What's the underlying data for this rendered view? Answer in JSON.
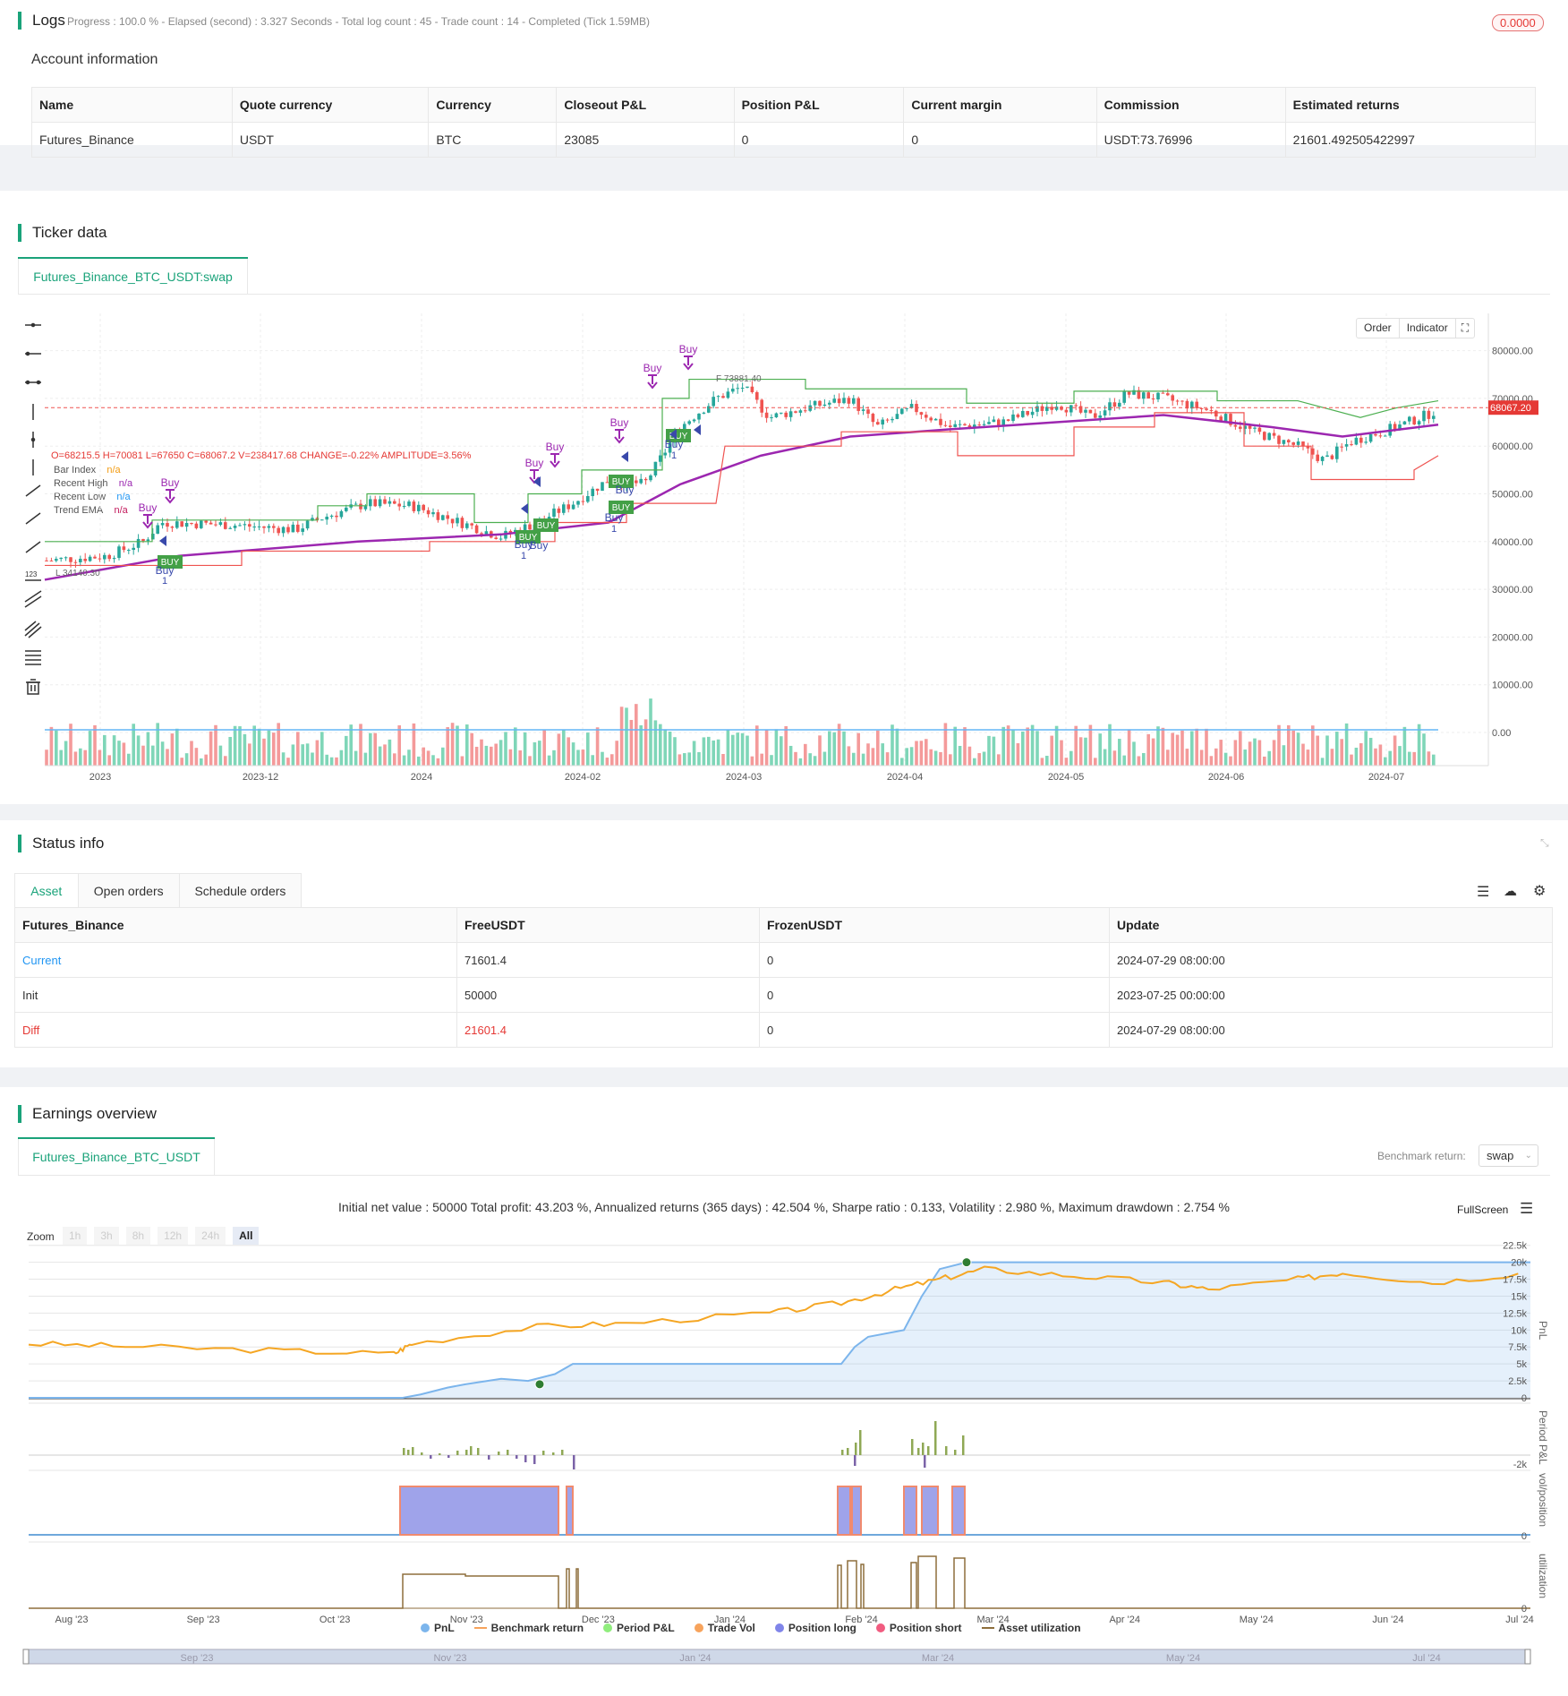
{
  "logs": {
    "title": "Logs",
    "status": "Progress : 100.0 % - Elapsed (second) : 3.327  Seconds - Total log count : 45 - Trade count : 14 - Completed (Tick 1.59MB)",
    "badge": "0.0000"
  },
  "account": {
    "title": "Account information",
    "columns": [
      "Name",
      "Quote currency",
      "Currency",
      "Closeout P&L",
      "Position P&L",
      "Current margin",
      "Commission",
      "Estimated returns"
    ],
    "row": [
      "Futures_Binance",
      "USDT",
      "BTC",
      "23085",
      "0",
      "0",
      "USDT:73.76996",
      "21601.492505422997"
    ]
  },
  "ticker": {
    "title": "Ticker data",
    "tab": "Futures_Binance_BTC_USDT:swap",
    "ohlc": "O=68215.5 H=70081 L=67650 C=68067.2 V=238417.68 CHANGE=-0.22% AMPLITUDE=3.56%",
    "legend": [
      {
        "name": "Bar Index",
        "value": "n/a",
        "color": "#f39c12"
      },
      {
        "name": "Recent High",
        "value": "n/a",
        "color": "#9b27b0"
      },
      {
        "name": "Recent Low",
        "value": "n/a",
        "color": "#2196f3"
      },
      {
        "name": "Trend EMA",
        "value": "n/a",
        "color": "#c2185b"
      }
    ],
    "buttons": [
      "Order",
      "Indicator"
    ],
    "price_label": "68067.20",
    "high_label": "73881.40",
    "low_label": "34140.30",
    "y_ticks": [
      "80000.00",
      "70000.00",
      "60000.00",
      "50000.00",
      "40000.00",
      "30000.00",
      "20000.00",
      "10000.00",
      "0.00"
    ],
    "x_ticks": [
      "2023",
      "2023-12",
      "2024",
      "2024-02",
      "2024-03",
      "2024-04",
      "2024-05",
      "2024-06",
      "2024-07"
    ],
    "signals": [
      "Buy",
      "Buy",
      "Buy",
      "Buy",
      "Buy",
      "Buy",
      "Buy",
      "Buy",
      "Buy",
      "Buy",
      "Buy",
      "Buy",
      "Buy",
      "Buy",
      "Buy",
      "Buy"
    ],
    "buy_tags": [
      "BUY",
      "BUY",
      "BUY",
      "BUY",
      "BUY",
      "BUY"
    ],
    "ones": [
      "1",
      "1",
      "1",
      "1"
    ]
  },
  "status": {
    "title": "Status info",
    "tabs": [
      "Asset",
      "Open orders",
      "Schedule orders"
    ],
    "columns": [
      "Futures_Binance",
      "FreeUSDT",
      "FrozenUSDT",
      "Update"
    ],
    "rows": [
      [
        "Current",
        "71601.4",
        "0",
        "2024-07-29 08:00:00"
      ],
      [
        "Init",
        "50000",
        "0",
        "2023-07-25 00:00:00"
      ],
      [
        "Diff",
        "21601.4",
        "0",
        "2024-07-29 08:00:00"
      ]
    ]
  },
  "earnings": {
    "title": "Earnings overview",
    "tab": "Futures_Binance_BTC_USDT",
    "benchmark_label": "Benchmark return:",
    "benchmark_value": "swap",
    "summary": "Initial net value : 50000 Total profit: 43.203 %, Annualized returns (365 days) : 42.504 %, Sharpe ratio : 0.133, Volatility : 2.980 %, Maximum drawdown : 2.754 %",
    "fullscreen": "FullScreen",
    "zoom_label": "Zoom",
    "zoom": [
      "1h",
      "3h",
      "8h",
      "12h",
      "24h",
      "All"
    ],
    "pnl_ticks": [
      "22.5k",
      "20k",
      "17.5k",
      "15k",
      "12.5k",
      "10k",
      "7.5k",
      "5k",
      "2.5k",
      "0"
    ],
    "axis_titles": [
      "PnL",
      "Period P&L",
      "vol/position",
      "utilization"
    ],
    "period_ticks": [
      "-2k"
    ],
    "zero": "0",
    "x_ticks": [
      "Aug '23",
      "Sep '23",
      "Oct '23",
      "Nov '23",
      "Dec '23",
      "Jan '24",
      "Feb '24",
      "Mar '24",
      "Apr '24",
      "May '24",
      "Jun '24",
      "Jul '24"
    ],
    "nav_ticks": [
      "Sep '23",
      "Nov '23",
      "Jan '24",
      "Mar '24",
      "May '24",
      "Jul '24"
    ],
    "legend": [
      {
        "name": "PnL",
        "color": "#7cb5ec"
      },
      {
        "name": "Benchmark return",
        "color": "#f7a35c"
      },
      {
        "name": "Period P&L",
        "color": "#90ed7d"
      },
      {
        "name": "Trade Vol",
        "color": "#f7a35c"
      },
      {
        "name": "Position long",
        "color": "#8085e9"
      },
      {
        "name": "Position short",
        "color": "#f15c80"
      },
      {
        "name": "Asset utilization",
        "color": "#8d6e3c"
      }
    ]
  },
  "chart_data": {
    "type": "line",
    "title": "",
    "xlabel": "",
    "ylabel": "PnL",
    "ylim": [
      0,
      22500
    ],
    "x": [
      "Aug '23",
      "Sep '23",
      "Oct '23",
      "Nov '23",
      "Dec '23",
      "Jan '24",
      "Feb '24",
      "Mar '24",
      "Apr '24",
      "May '24",
      "Jun '24",
      "Jul '24"
    ],
    "series": [
      {
        "name": "PnL",
        "values": [
          0,
          0,
          0,
          500,
          2000,
          5000,
          5000,
          17500,
          20000,
          20000,
          20000,
          20000
        ]
      },
      {
        "name": "Benchmark return",
        "values": [
          8000,
          7500,
          7000,
          8500,
          10000,
          12000,
          13000,
          17500,
          19000,
          18000,
          17500,
          18500
        ]
      }
    ]
  }
}
